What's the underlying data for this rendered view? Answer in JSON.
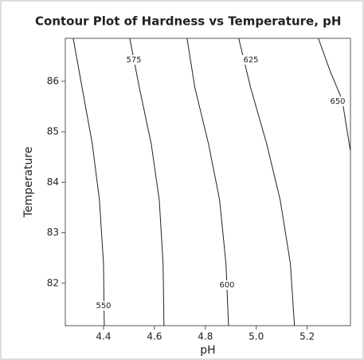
{
  "chart_data": {
    "type": "contour",
    "title": "Contour Plot of Hardness vs Temperature, pH",
    "x_label": "pH",
    "y_label": "Temperature",
    "xlim": [
      4.25,
      5.37
    ],
    "ylim": [
      81.16,
      86.85
    ],
    "xticks": [
      4.4,
      4.6,
      4.8,
      {
        "value": 5,
        "label": "5.0"
      },
      5.2
    ],
    "yticks": [
      82,
      83,
      84,
      85,
      86
    ],
    "color": "#222222",
    "series": [
      {
        "name": "550",
        "x": [
          4.281,
          4.316,
          4.356,
          4.384,
          4.4,
          4.403
        ],
        "y": [
          86.85,
          85.87,
          84.76,
          83.65,
          82.39,
          81.16
        ]
      },
      {
        "name": "575",
        "x": [
          4.503,
          4.541,
          4.5875,
          4.619,
          4.634,
          4.6375
        ],
        "y": [
          86.85,
          85.87,
          84.76,
          83.65,
          82.39,
          81.16
        ]
      },
      {
        "name": "600",
        "x": [
          4.728,
          4.759,
          4.8125,
          4.856,
          4.881,
          4.891
        ],
        "y": [
          86.85,
          85.87,
          84.76,
          83.65,
          82.39,
          81.16
        ]
      },
      {
        "name": "625",
        "x": [
          4.931,
          4.978,
          5.041,
          5.094,
          5.134,
          5.15
        ],
        "y": [
          86.85,
          85.87,
          84.76,
          83.65,
          82.39,
          81.16
        ]
      },
      {
        "name": "650",
        "x": [
          5.244,
          5.291,
          5.3375,
          5.369
        ],
        "y": [
          86.85,
          86.19,
          85.63,
          84.64
        ]
      }
    ]
  }
}
